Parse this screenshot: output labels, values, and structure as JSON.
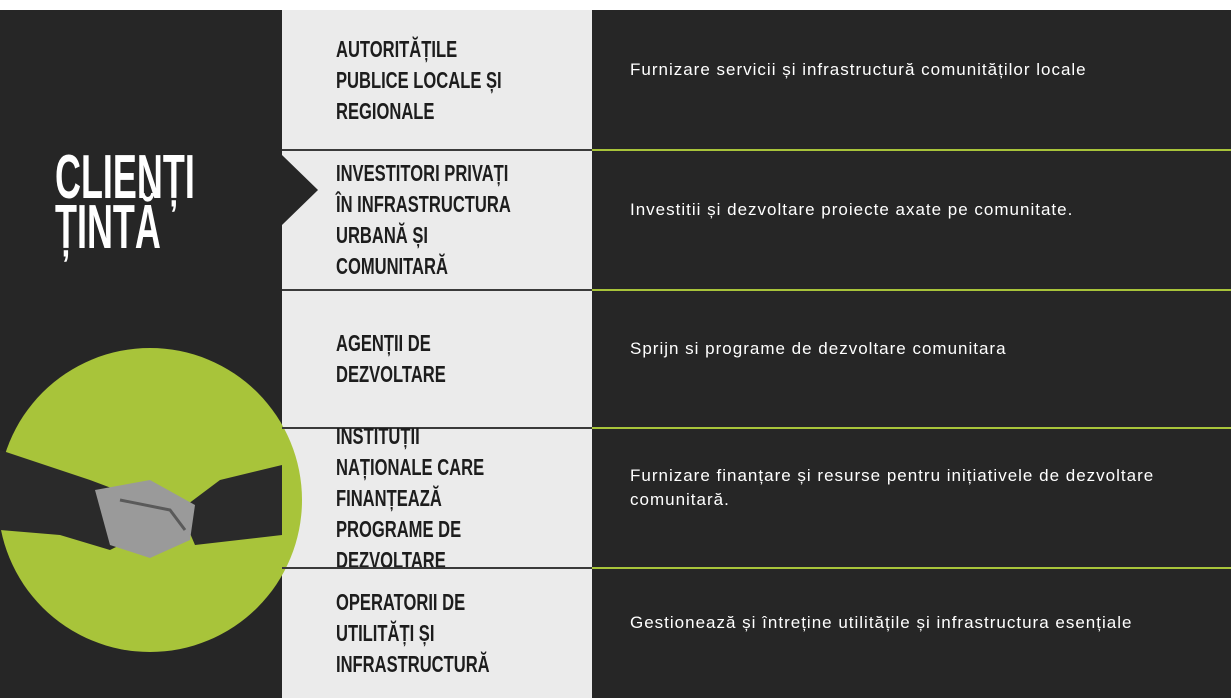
{
  "title": {
    "line1": "CLIENȚI",
    "line2": "ȚINTĂ"
  },
  "rows": [
    {
      "label": "AUTORITĂȚILE PUBLICE LOCALE ȘI REGIONALE",
      "description": "Furnizare servicii și infrastructură comunităților locale"
    },
    {
      "label": "INVESTITORI PRIVAȚI ÎN INFRASTRUCTURA URBANĂ ȘI COMUNITARĂ",
      "description": "Investitii și dezvoltare proiecte axate pe comunitate."
    },
    {
      "label": "AGENȚII DE DEZVOLTARE",
      "description": "Sprijn si programe de dezvoltare comunitara"
    },
    {
      "label": "INSTITUȚII NAȚIONALE CARE FINANȚEAZĂ PROGRAME DE DEZVOLTARE",
      "description": "Furnizare finanțare și resurse pentru inițiativele de dezvoltare comunitară."
    },
    {
      "label": "OPERATORII DE UTILITĂȚI ȘI INFRASTRUCTURĂ",
      "description": "Gestionează și întreține utilitățile și infrastructura esențiale"
    }
  ]
}
